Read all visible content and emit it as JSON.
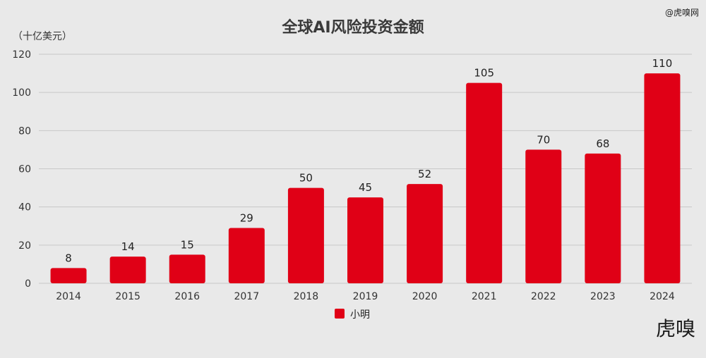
{
  "chart_data": {
    "type": "bar",
    "title": "全球AI风险投资金额",
    "unit_label": "（十亿美元）",
    "categories": [
      "2014",
      "2015",
      "2016",
      "2017",
      "2018",
      "2019",
      "2020",
      "2021",
      "2022",
      "2023",
      "2024"
    ],
    "series": [
      {
        "name": "小明",
        "values": [
          8,
          14,
          15,
          29,
          50,
          45,
          52,
          105,
          70,
          68,
          110
        ],
        "color": "#e00016"
      }
    ],
    "ylim": [
      0,
      120
    ],
    "yticks": [
      0,
      20,
      40,
      60,
      80,
      100,
      120
    ],
    "grid": true,
    "legend_position": "bottom-center"
  },
  "watermark": {
    "top_right": "@虎嗅网",
    "bottom_right_logo": "虎嗅"
  },
  "colors": {
    "background": "#e9e9e9",
    "bar": "#e00016",
    "grid": "#c8c8c8"
  }
}
